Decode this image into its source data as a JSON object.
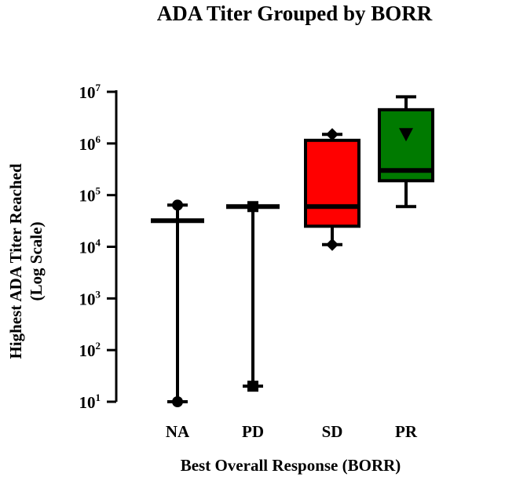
{
  "chart_data": {
    "type": "box",
    "title": "ADA Titer Grouped by BORR",
    "xlabel": "Best Overall Response (BORR)",
    "ylabel_line1": "Highest ADA Titer Reached",
    "ylabel_line2": "(Log Scale)",
    "yscale": "log",
    "ylim": [
      10,
      10000000
    ],
    "ytick_labels": [
      {
        "base": "10",
        "exp": "1",
        "value": 10
      },
      {
        "base": "10",
        "exp": "2",
        "value": 100
      },
      {
        "base": "10",
        "exp": "3",
        "value": 1000
      },
      {
        "base": "10",
        "exp": "4",
        "value": 10000
      },
      {
        "base": "10",
        "exp": "5",
        "value": 100000
      },
      {
        "base": "10",
        "exp": "6",
        "value": 1000000
      },
      {
        "base": "10",
        "exp": "7",
        "value": 10000000
      }
    ],
    "categories": [
      "NA",
      "PD",
      "SD",
      "PR"
    ],
    "boxes": [
      {
        "category": "NA",
        "min": 10,
        "q1": 32000,
        "median": 32000,
        "q3": 32000,
        "max": 64000,
        "color": "#000000",
        "marker": "circle"
      },
      {
        "category": "PD",
        "min": 20,
        "q1": 60000,
        "median": 60000,
        "q3": 60000,
        "max": 60000,
        "color": "#000000",
        "marker": "square"
      },
      {
        "category": "SD",
        "min": 11000,
        "q1": 25000,
        "median": 60000,
        "q3": 1150000,
        "max": 1500000,
        "color": "#ff0000",
        "marker": "diamond"
      },
      {
        "category": "PR",
        "min": 60000,
        "q1": 190000,
        "median": 300000,
        "q3": 4500000,
        "max": 8000000,
        "color": "#007a00",
        "marker": "triangle-down",
        "marker_value": 1500000
      }
    ]
  }
}
